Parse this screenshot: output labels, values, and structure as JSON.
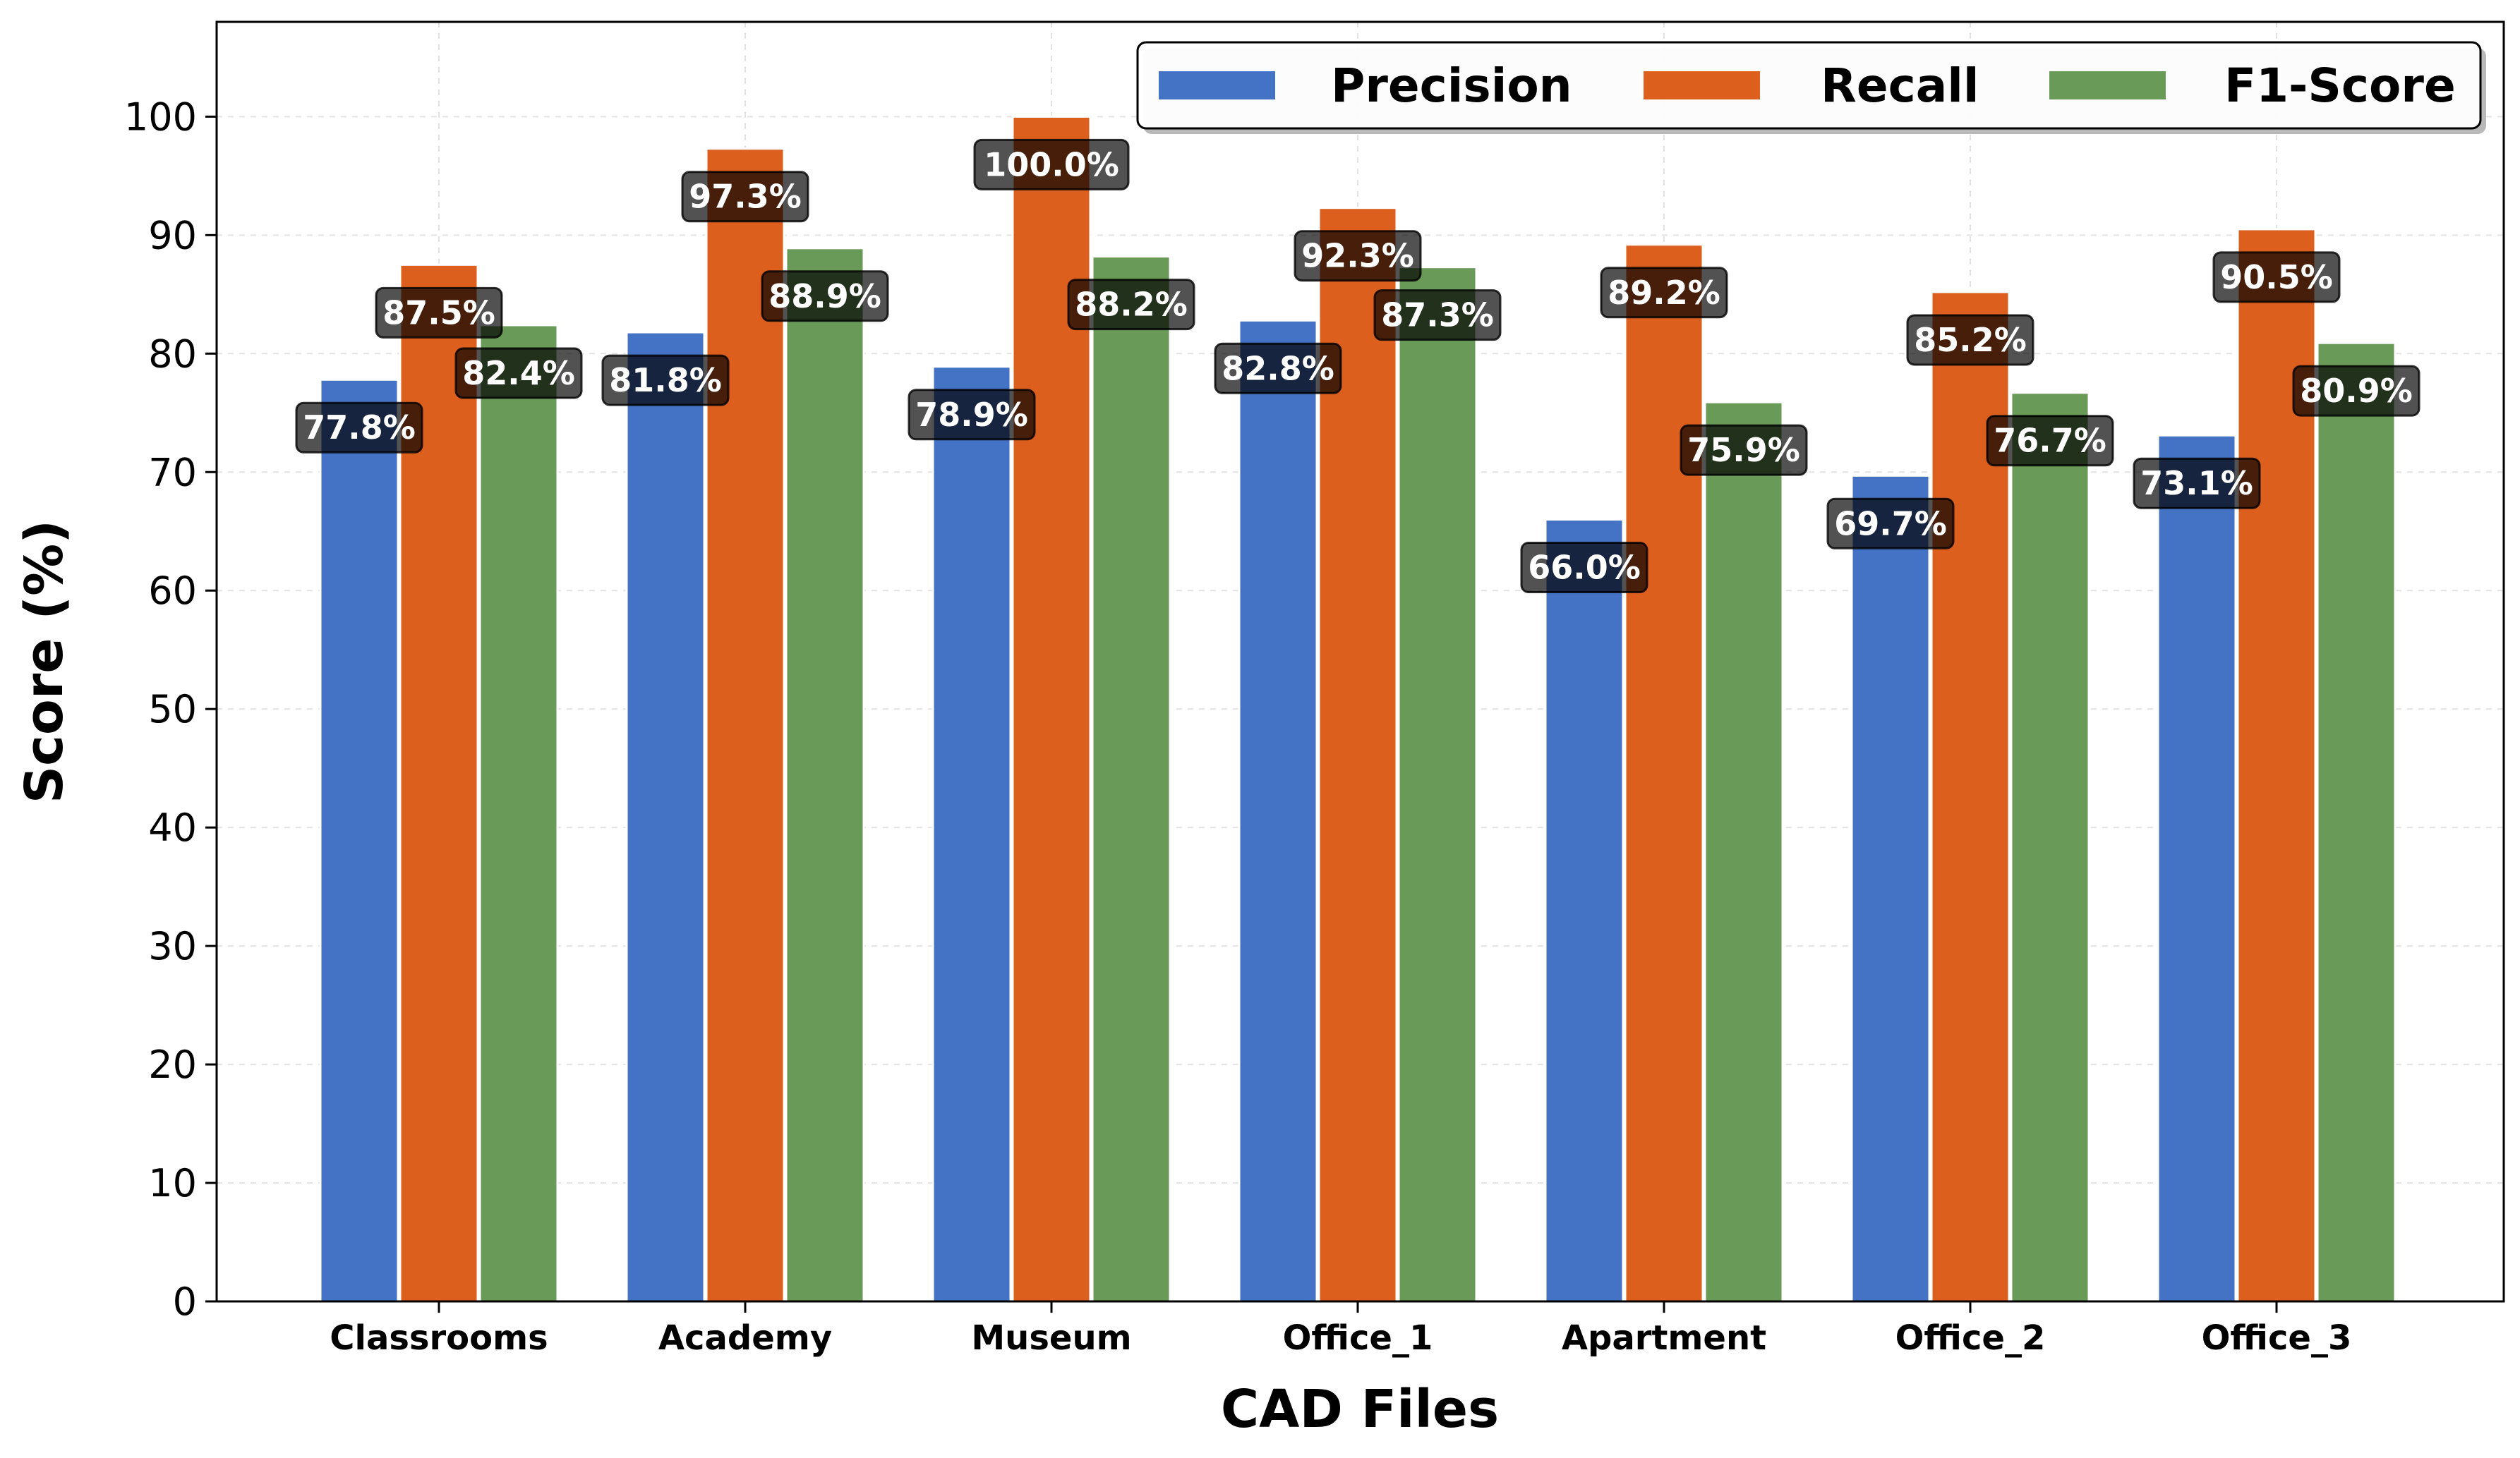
{
  "chart_data": {
    "type": "bar",
    "title": "",
    "xlabel": "CAD Files",
    "ylabel": "Score (%)",
    "ylim": [
      0,
      108
    ],
    "yticks": [
      0,
      10,
      20,
      30,
      40,
      50,
      60,
      70,
      80,
      90,
      100
    ],
    "grid": true,
    "legend_position": "top-right",
    "categories": [
      "Classrooms",
      "Academy",
      "Museum",
      "Office_1",
      "Apartment",
      "Office_2",
      "Office_3"
    ],
    "series": [
      {
        "name": "Precision",
        "color": "#4472C4",
        "values": [
          77.8,
          81.8,
          78.9,
          82.8,
          66.0,
          69.7,
          73.1
        ],
        "labels": [
          "77.8%",
          "81.8%",
          "78.9%",
          "82.8%",
          "66.0%",
          "69.7%",
          "73.1%"
        ]
      },
      {
        "name": "Recall",
        "color": "#DC5F1E",
        "values": [
          87.5,
          97.3,
          100.0,
          92.3,
          89.2,
          85.2,
          90.5
        ],
        "labels": [
          "87.5%",
          "97.3%",
          "100.0%",
          "92.3%",
          "89.2%",
          "85.2%",
          "90.5%"
        ]
      },
      {
        "name": "F1-Score",
        "color": "#6A9A58",
        "values": [
          82.4,
          88.9,
          88.2,
          87.3,
          75.9,
          76.7,
          80.9
        ],
        "labels": [
          "82.4%",
          "88.9%",
          "88.2%",
          "87.3%",
          "75.9%",
          "76.7%",
          "80.9%"
        ]
      }
    ]
  }
}
